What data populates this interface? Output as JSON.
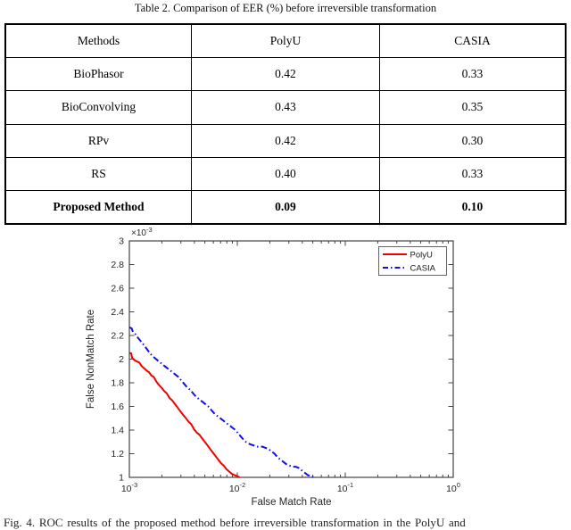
{
  "table_section": {
    "title": "Table 2. Comparison of EER (%) before irreversible transformation",
    "columns": [
      "Methods",
      "PolyU",
      "CASIA"
    ],
    "rows": [
      {
        "method": "BioPhasor",
        "polyu": "0.42",
        "casia": "0.33"
      },
      {
        "method": "BioConvolving",
        "polyu": "0.43",
        "casia": "0.35"
      },
      {
        "method": "RPv",
        "polyu": "0.42",
        "casia": "0.30"
      },
      {
        "method": "RS",
        "polyu": "0.40",
        "casia": "0.33"
      },
      {
        "method": "Proposed Method",
        "polyu": "0.09",
        "casia": "0.10"
      }
    ]
  },
  "figure": {
    "caption": "Fig. 4.   ROC results of the proposed method before irreversible transformation in the PolyU and"
  },
  "chart_data": {
    "type": "line",
    "title": "",
    "xlabel": "False Match Rate",
    "ylabel": "False NonMatch Rate",
    "x_scale": "log",
    "xlim": [
      0.001,
      1
    ],
    "y_unit_multiplier": "1e-3",
    "y_multiplier_base": "×10",
    "y_multiplier_exp": "-3",
    "ylim_e3": [
      1,
      3
    ],
    "x_tick_exponents": [
      -3,
      -2,
      -1,
      0
    ],
    "y_ticks_e3": [
      1,
      1.2,
      1.4,
      1.6,
      1.8,
      2,
      2.2,
      2.4,
      2.6,
      2.8,
      3
    ],
    "grid": false,
    "legend_position": "top-right",
    "axis_color": "#444444",
    "text_color": "#262626",
    "series": [
      {
        "name": "PolyU",
        "color": "#f20000",
        "line": "solid",
        "points_x": [
          0.001,
          0.00104,
          0.00106,
          0.00112,
          0.00118,
          0.00124,
          0.0013,
          0.00138,
          0.00146,
          0.00152,
          0.0016,
          0.00168,
          0.00178,
          0.00188,
          0.00198,
          0.0021,
          0.00222,
          0.00236,
          0.0025,
          0.00264,
          0.0028,
          0.00296,
          0.00314,
          0.00334,
          0.00354,
          0.00374,
          0.00396,
          0.0042,
          0.00446,
          0.00472,
          0.005,
          0.0053,
          0.0056,
          0.00594,
          0.00628,
          0.00666,
          0.00706,
          0.00748,
          0.00792,
          0.00838,
          0.00888,
          0.0094,
          0.00996,
          0.0105
        ],
        "points_y_e3": [
          2.05,
          2.05,
          2.01,
          1.99,
          1.98,
          1.97,
          1.94,
          1.92,
          1.9,
          1.89,
          1.86,
          1.85,
          1.81,
          1.78,
          1.76,
          1.73,
          1.71,
          1.67,
          1.65,
          1.62,
          1.59,
          1.56,
          1.53,
          1.5,
          1.47,
          1.45,
          1.41,
          1.38,
          1.36,
          1.33,
          1.3,
          1.27,
          1.24,
          1.21,
          1.18,
          1.15,
          1.12,
          1.1,
          1.07,
          1.05,
          1.03,
          1.02,
          1.01,
          1.0
        ]
      },
      {
        "name": "CASIA",
        "color": "#0f0fe8",
        "line": "dashdot",
        "points_x": [
          0.001,
          0.00105,
          0.00108,
          0.00114,
          0.0012,
          0.00128,
          0.00136,
          0.00144,
          0.00152,
          0.00162,
          0.00172,
          0.00182,
          0.00194,
          0.00206,
          0.0022,
          0.00234,
          0.0025,
          0.00266,
          0.00284,
          0.00302,
          0.00322,
          0.00344,
          0.00366,
          0.0039,
          0.00416,
          0.00444,
          0.00474,
          0.00504,
          0.00538,
          0.00574,
          0.00612,
          0.00652,
          0.00696,
          0.00742,
          0.00792,
          0.00844,
          0.009,
          0.0096,
          0.01024,
          0.0109,
          0.01162,
          0.0124,
          0.0132,
          0.0141,
          0.015,
          0.016,
          0.0171,
          0.0182,
          0.0194,
          0.0207,
          0.0221,
          0.0236,
          0.0251,
          0.0268,
          0.0286,
          0.0305,
          0.0325,
          0.0347,
          0.037,
          0.0394,
          0.042,
          0.0448,
          0.0478,
          0.051,
          0.053
        ],
        "points_y_e3": [
          2.27,
          2.26,
          2.23,
          2.21,
          2.18,
          2.15,
          2.12,
          2.09,
          2.06,
          2.03,
          2.01,
          1.99,
          1.97,
          1.95,
          1.93,
          1.91,
          1.89,
          1.87,
          1.85,
          1.82,
          1.79,
          1.76,
          1.74,
          1.71,
          1.68,
          1.66,
          1.64,
          1.62,
          1.6,
          1.57,
          1.54,
          1.52,
          1.5,
          1.48,
          1.46,
          1.44,
          1.42,
          1.4,
          1.37,
          1.34,
          1.31,
          1.29,
          1.28,
          1.27,
          1.26,
          1.26,
          1.26,
          1.25,
          1.24,
          1.22,
          1.2,
          1.17,
          1.15,
          1.13,
          1.11,
          1.1,
          1.09,
          1.09,
          1.08,
          1.06,
          1.04,
          1.02,
          1.01,
          1.0,
          1.0
        ]
      }
    ]
  }
}
